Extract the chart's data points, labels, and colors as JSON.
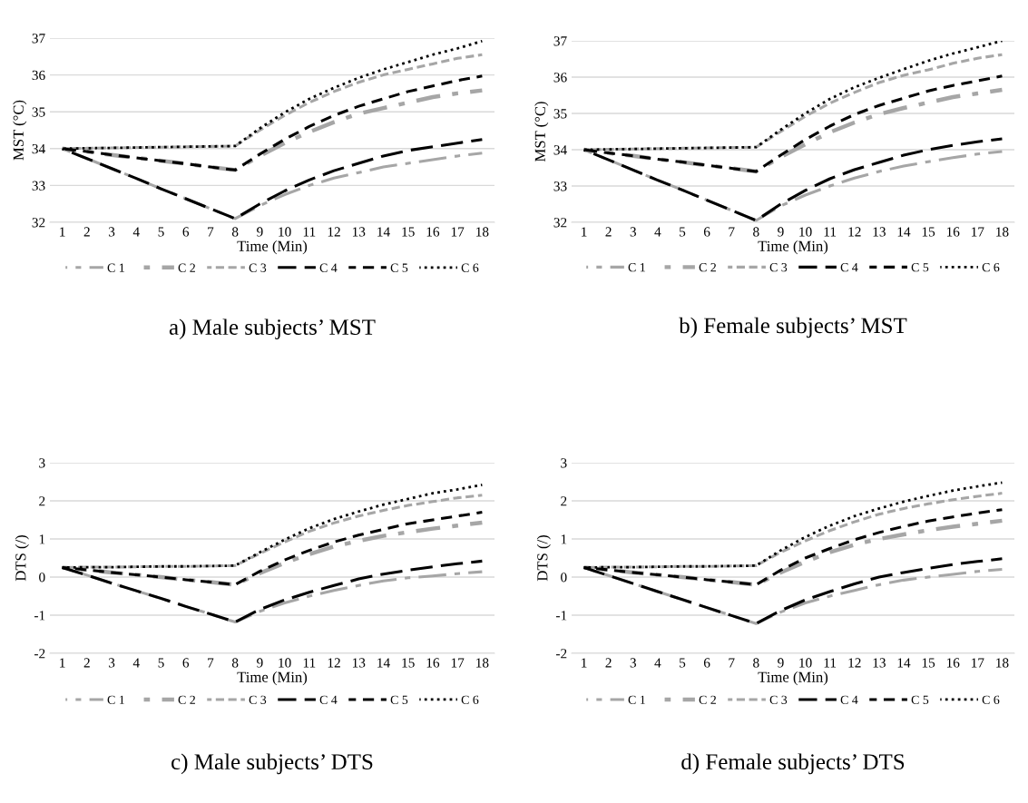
{
  "chart_data": [
    {
      "type": "line",
      "title": "a) Male subjects’ MST",
      "xlabel": "Time (Min)",
      "ylabel": "MST (°C)",
      "categories": [
        "1",
        "2",
        "3",
        "4",
        "5",
        "6",
        "7",
        "8",
        "9",
        "10",
        "11",
        "12",
        "13",
        "14",
        "15",
        "16",
        "17",
        "18"
      ],
      "ylim": [
        32,
        37
      ],
      "yticks": [
        32,
        33,
        34,
        35,
        36,
        37
      ],
      "grid": "y",
      "legend": "bottom",
      "line_style": "dashed",
      "series": [
        {
          "name": "C 1",
          "color": "#a6a6a6",
          "values": [
            34,
            33.73,
            33.46,
            33.19,
            32.91,
            32.64,
            32.37,
            32.1,
            32.45,
            32.75,
            33.0,
            33.2,
            33.35,
            33.5,
            33.6,
            33.7,
            33.8,
            33.88
          ]
        },
        {
          "name": "C 2",
          "color": "#a6a6a6",
          "values": [
            34,
            33.92,
            33.83,
            33.75,
            33.67,
            33.59,
            33.5,
            33.42,
            33.8,
            34.15,
            34.45,
            34.72,
            34.95,
            35.1,
            35.25,
            35.4,
            35.5,
            35.58
          ]
        },
        {
          "name": "C 3",
          "color": "#a6a6a6",
          "values": [
            34,
            34.01,
            34.02,
            34.03,
            34.04,
            34.05,
            34.06,
            34.07,
            34.5,
            34.9,
            35.25,
            35.55,
            35.8,
            36.0,
            36.15,
            36.3,
            36.45,
            36.55
          ]
        },
        {
          "name": "C 4",
          "color": "#000000",
          "values": [
            34,
            33.73,
            33.46,
            33.19,
            32.91,
            32.64,
            32.37,
            32.1,
            32.5,
            32.85,
            33.15,
            33.4,
            33.6,
            33.8,
            33.95,
            34.05,
            34.15,
            34.25
          ]
        },
        {
          "name": "C 5",
          "color": "#000000",
          "values": [
            34,
            33.92,
            33.83,
            33.75,
            33.67,
            33.59,
            33.5,
            33.42,
            33.85,
            34.25,
            34.6,
            34.9,
            35.15,
            35.35,
            35.55,
            35.7,
            35.85,
            35.97
          ]
        },
        {
          "name": "C 6",
          "color": "#000000",
          "line_style": "dotted",
          "values": [
            34,
            34.01,
            34.02,
            34.03,
            34.04,
            34.05,
            34.06,
            34.07,
            34.55,
            34.98,
            35.35,
            35.65,
            35.92,
            36.15,
            36.35,
            36.55,
            36.72,
            36.92
          ]
        }
      ]
    },
    {
      "type": "line",
      "title": "b) Female subjects’ MST",
      "xlabel": "Time (Min)",
      "ylabel": "MST (°C)",
      "categories": [
        "1",
        "2",
        "3",
        "4",
        "5",
        "6",
        "7",
        "8",
        "9",
        "10",
        "11",
        "12",
        "13",
        "14",
        "15",
        "16",
        "17",
        "18"
      ],
      "ylim": [
        32,
        37
      ],
      "yticks": [
        32,
        33,
        34,
        35,
        36,
        37
      ],
      "grid": "y",
      "legend": "bottom",
      "line_style": "dashed",
      "series": [
        {
          "name": "C 1",
          "color": "#a6a6a6",
          "values": [
            34,
            33.72,
            33.44,
            33.16,
            32.89,
            32.61,
            32.33,
            32.05,
            32.45,
            32.75,
            33.0,
            33.22,
            33.4,
            33.55,
            33.67,
            33.78,
            33.88,
            33.95
          ]
        },
        {
          "name": "C 2",
          "color": "#a6a6a6",
          "values": [
            34,
            33.91,
            33.83,
            33.74,
            33.66,
            33.57,
            33.49,
            33.4,
            33.8,
            34.15,
            34.48,
            34.75,
            34.98,
            35.15,
            35.3,
            35.45,
            35.55,
            35.65
          ]
        },
        {
          "name": "C 3",
          "color": "#a6a6a6",
          "values": [
            34,
            34.01,
            34.02,
            34.03,
            34.04,
            34.05,
            34.06,
            34.07,
            34.5,
            34.92,
            35.28,
            35.58,
            35.85,
            36.05,
            36.2,
            36.38,
            36.52,
            36.62
          ]
        },
        {
          "name": "C 4",
          "color": "#000000",
          "values": [
            34,
            33.72,
            33.44,
            33.16,
            32.89,
            32.61,
            32.33,
            32.05,
            32.5,
            32.88,
            33.2,
            33.45,
            33.65,
            33.85,
            34.0,
            34.12,
            34.22,
            34.3
          ]
        },
        {
          "name": "C 5",
          "color": "#000000",
          "values": [
            34,
            33.91,
            33.83,
            33.74,
            33.66,
            33.57,
            33.49,
            33.4,
            33.85,
            34.28,
            34.65,
            34.97,
            35.22,
            35.42,
            35.62,
            35.77,
            35.9,
            36.03
          ]
        },
        {
          "name": "C 6",
          "color": "#000000",
          "line_style": "dotted",
          "values": [
            34,
            34.01,
            34.02,
            34.03,
            34.04,
            34.05,
            34.06,
            34.07,
            34.55,
            35.0,
            35.4,
            35.72,
            35.98,
            36.22,
            36.45,
            36.65,
            36.82,
            37.0
          ]
        }
      ]
    },
    {
      "type": "line",
      "title": "c) Male subjects’ DTS",
      "xlabel": "Time (Min)",
      "ylabel": "DTS (/)",
      "categories": [
        "1",
        "2",
        "3",
        "4",
        "5",
        "6",
        "7",
        "8",
        "9",
        "10",
        "11",
        "12",
        "13",
        "14",
        "15",
        "16",
        "17",
        "18"
      ],
      "ylim": [
        -2,
        3
      ],
      "yticks": [
        -2,
        -1,
        0,
        1,
        2,
        3
      ],
      "grid": "y",
      "legend": "bottom",
      "line_style": "dashed",
      "series": [
        {
          "name": "C 1",
          "color": "#a6a6a6",
          "values": [
            0.25,
            0.05,
            -0.16,
            -0.36,
            -0.56,
            -0.77,
            -0.97,
            -1.18,
            -0.9,
            -0.68,
            -0.5,
            -0.35,
            -0.22,
            -0.1,
            -0.02,
            0.03,
            0.09,
            0.14
          ]
        },
        {
          "name": "C 2",
          "color": "#a6a6a6",
          "values": [
            0.25,
            0.19,
            0.12,
            0.06,
            0.0,
            -0.07,
            -0.13,
            -0.2,
            0.1,
            0.37,
            0.6,
            0.8,
            0.95,
            1.08,
            1.18,
            1.27,
            1.35,
            1.43
          ]
        },
        {
          "name": "C 3",
          "color": "#a6a6a6",
          "values": [
            0.25,
            0.26,
            0.26,
            0.27,
            0.28,
            0.28,
            0.29,
            0.3,
            0.62,
            0.92,
            1.2,
            1.42,
            1.6,
            1.75,
            1.88,
            1.98,
            2.08,
            2.15
          ]
        },
        {
          "name": "C 4",
          "color": "#000000",
          "values": [
            0.25,
            0.05,
            -0.16,
            -0.36,
            -0.56,
            -0.77,
            -0.97,
            -1.18,
            -0.85,
            -0.6,
            -0.4,
            -0.22,
            -0.05,
            0.08,
            0.18,
            0.27,
            0.35,
            0.42
          ]
        },
        {
          "name": "C 5",
          "color": "#000000",
          "values": [
            0.25,
            0.19,
            0.12,
            0.06,
            0.0,
            -0.07,
            -0.13,
            -0.2,
            0.15,
            0.45,
            0.7,
            0.92,
            1.1,
            1.25,
            1.4,
            1.5,
            1.6,
            1.7
          ]
        },
        {
          "name": "C 6",
          "color": "#000000",
          "line_style": "dotted",
          "values": [
            0.25,
            0.26,
            0.26,
            0.27,
            0.28,
            0.28,
            0.29,
            0.3,
            0.65,
            0.98,
            1.28,
            1.52,
            1.72,
            1.9,
            2.05,
            2.2,
            2.3,
            2.42
          ]
        }
      ]
    },
    {
      "type": "line",
      "title": "d) Female subjects’ DTS",
      "xlabel": "Time (Min)",
      "ylabel": "DTS (/)",
      "categories": [
        "1",
        "2",
        "3",
        "4",
        "5",
        "6",
        "7",
        "8",
        "9",
        "10",
        "11",
        "12",
        "13",
        "14",
        "15",
        "16",
        "17",
        "18"
      ],
      "ylim": [
        -2,
        3
      ],
      "yticks": [
        -2,
        -1,
        0,
        1,
        2,
        3
      ],
      "grid": "y",
      "legend": "bottom",
      "line_style": "dashed",
      "series": [
        {
          "name": "C 1",
          "color": "#a6a6a6",
          "values": [
            0.25,
            0.04,
            -0.17,
            -0.38,
            -0.59,
            -0.8,
            -1.01,
            -1.22,
            -0.92,
            -0.68,
            -0.5,
            -0.35,
            -0.2,
            -0.08,
            0.0,
            0.07,
            0.15,
            0.2
          ]
        },
        {
          "name": "C 2",
          "color": "#a6a6a6",
          "values": [
            0.25,
            0.19,
            0.12,
            0.06,
            0.0,
            -0.07,
            -0.13,
            -0.2,
            0.12,
            0.4,
            0.65,
            0.85,
            1.0,
            1.12,
            1.23,
            1.32,
            1.4,
            1.48
          ]
        },
        {
          "name": "C 3",
          "color": "#a6a6a6",
          "values": [
            0.25,
            0.26,
            0.26,
            0.27,
            0.28,
            0.28,
            0.29,
            0.3,
            0.65,
            0.95,
            1.22,
            1.45,
            1.65,
            1.8,
            1.92,
            2.03,
            2.12,
            2.2
          ]
        },
        {
          "name": "C 4",
          "color": "#000000",
          "values": [
            0.25,
            0.04,
            -0.17,
            -0.38,
            -0.59,
            -0.8,
            -1.01,
            -1.22,
            -0.88,
            -0.6,
            -0.38,
            -0.18,
            0.0,
            0.12,
            0.23,
            0.33,
            0.41,
            0.48
          ]
        },
        {
          "name": "C 5",
          "color": "#000000",
          "values": [
            0.25,
            0.19,
            0.12,
            0.06,
            0.0,
            -0.07,
            -0.13,
            -0.2,
            0.18,
            0.5,
            0.75,
            0.98,
            1.17,
            1.33,
            1.47,
            1.58,
            1.68,
            1.77
          ]
        },
        {
          "name": "C 6",
          "color": "#000000",
          "line_style": "dotted",
          "values": [
            0.25,
            0.26,
            0.26,
            0.27,
            0.28,
            0.28,
            0.29,
            0.3,
            0.7,
            1.05,
            1.35,
            1.6,
            1.8,
            1.98,
            2.13,
            2.27,
            2.38,
            2.48
          ]
        }
      ]
    }
  ]
}
